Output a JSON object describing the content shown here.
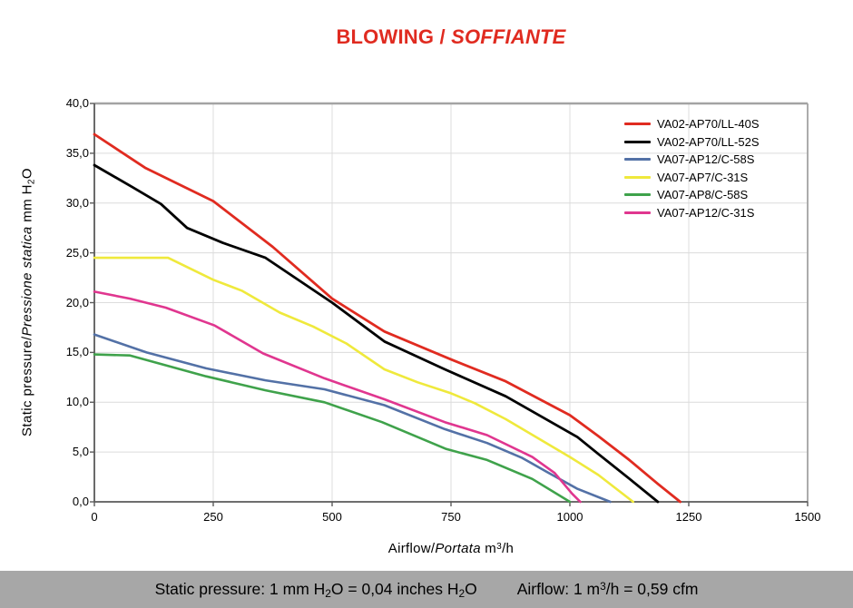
{
  "title": {
    "text": "BLOWING / SOFFIANTE",
    "parts": [
      {
        "t": "BLOWING / "
      },
      {
        "t": "SOFFIANTE",
        "i": 1
      }
    ]
  },
  "theme": {
    "title_color": "#e02b20",
    "footer_bg": "#a7a7a7",
    "grid_color": "#dcdcdc",
    "axis_color_dark": "#5a5a5a",
    "axis_color_light": "#a3a3a3",
    "tick_color": "#5a5a5a"
  },
  "chart_data": {
    "type": "line",
    "title": "BLOWING / SOFFIANTE",
    "xlabel": "Airflow/Portata m³/h",
    "ylabel": "Static pressure/Pressione statica mm H₂O",
    "xlim": [
      0,
      1500
    ],
    "ylim": [
      0,
      40
    ],
    "xticks": [
      0,
      250,
      500,
      750,
      1000,
      1250,
      1500
    ],
    "xtick_labels": [
      "0",
      "250",
      "500",
      "750",
      "1000",
      "1250",
      "1500"
    ],
    "yticks": [
      0,
      5,
      10,
      15,
      20,
      25,
      30,
      35,
      40
    ],
    "ytick_labels": [
      "0,0",
      "5,0",
      "10,0",
      "15,0",
      "20,0",
      "25,0",
      "30,0",
      "35,0",
      "40,0"
    ],
    "grid": true,
    "legend_position": "top-right",
    "series": [
      {
        "name": "VA02-AP70/LL-40S",
        "color": "#e02b20",
        "points": [
          [
            0,
            36.9
          ],
          [
            108,
            33.5
          ],
          [
            250,
            30.2
          ],
          [
            375,
            25.6
          ],
          [
            500,
            20.4
          ],
          [
            610,
            17.1
          ],
          [
            750,
            14.3
          ],
          [
            865,
            12.1
          ],
          [
            1000,
            8.7
          ],
          [
            1060,
            6.6
          ],
          [
            1125,
            4.2
          ],
          [
            1185,
            1.8
          ],
          [
            1232,
            0
          ]
        ]
      },
      {
        "name": "VA02-AP70/LL-52S",
        "color": "#000000",
        "points": [
          [
            0,
            33.8
          ],
          [
            80,
            31.6
          ],
          [
            140,
            29.9
          ],
          [
            195,
            27.5
          ],
          [
            270,
            26.0
          ],
          [
            360,
            24.5
          ],
          [
            500,
            20.0
          ],
          [
            610,
            16.1
          ],
          [
            737,
            13.3
          ],
          [
            865,
            10.6
          ],
          [
            1016,
            6.5
          ],
          [
            1060,
            4.8
          ],
          [
            1123,
            2.4
          ],
          [
            1185,
            0
          ]
        ]
      },
      {
        "name": "VA07-AP12/C-58S",
        "color": "#5371a6",
        "points": [
          [
            0,
            16.8
          ],
          [
            110,
            15.0
          ],
          [
            235,
            13.4
          ],
          [
            360,
            12.2
          ],
          [
            484,
            11.3
          ],
          [
            610,
            9.7
          ],
          [
            737,
            7.3
          ],
          [
            826,
            5.9
          ],
          [
            900,
            4.4
          ],
          [
            952,
            3.0
          ],
          [
            1016,
            1.3
          ],
          [
            1085,
            0
          ]
        ]
      },
      {
        "name": "VA07-AP7/C-31S",
        "color": "#efe93c",
        "points": [
          [
            0,
            24.5
          ],
          [
            155,
            24.5
          ],
          [
            250,
            22.3
          ],
          [
            310,
            21.2
          ],
          [
            390,
            19.0
          ],
          [
            460,
            17.6
          ],
          [
            530,
            15.9
          ],
          [
            610,
            13.3
          ],
          [
            680,
            12.0
          ],
          [
            750,
            10.9
          ],
          [
            800,
            9.9
          ],
          [
            865,
            8.3
          ],
          [
            1000,
            4.5
          ],
          [
            1060,
            2.7
          ],
          [
            1133,
            0
          ]
        ]
      },
      {
        "name": "VA07-AP8/C-58S",
        "color": "#3fa24b",
        "points": [
          [
            0,
            14.8
          ],
          [
            75,
            14.7
          ],
          [
            235,
            12.6
          ],
          [
            360,
            11.2
          ],
          [
            484,
            10.0
          ],
          [
            605,
            8.0
          ],
          [
            740,
            5.3
          ],
          [
            826,
            4.2
          ],
          [
            921,
            2.3
          ],
          [
            1000,
            0
          ]
        ]
      },
      {
        "name": "VA07-AP12/C-31S",
        "color": "#e0368f",
        "points": [
          [
            0,
            21.1
          ],
          [
            75,
            20.4
          ],
          [
            150,
            19.5
          ],
          [
            253,
            17.7
          ],
          [
            355,
            14.9
          ],
          [
            484,
            12.4
          ],
          [
            610,
            10.3
          ],
          [
            737,
            8.0
          ],
          [
            826,
            6.7
          ],
          [
            921,
            4.5
          ],
          [
            968,
            2.9
          ],
          [
            1005,
            0.8
          ],
          [
            1022,
            0
          ]
        ]
      }
    ]
  },
  "axis_display": {
    "ylabel_parts": [
      {
        "t": "Static pressure/"
      },
      {
        "t": "Pressione statica",
        "i": 1
      },
      {
        "t": " mm H"
      },
      {
        "t": "2",
        "sub": 1
      },
      {
        "t": "O"
      }
    ],
    "xlabel_parts": [
      {
        "t": "Airflow/"
      },
      {
        "t": "Portata",
        "i": 1
      },
      {
        "t": " m"
      },
      {
        "t": "3",
        "sup": 1
      },
      {
        "t": "/h"
      }
    ]
  },
  "footer": {
    "pressure_note": "Static pressure: 1 mm H₂O = 0,04 inches H₂O",
    "airflow_note": "Airflow: 1 m³/h = 0,59 cfm",
    "pressure_parts": [
      {
        "t": "Static pressure: 1 mm H"
      },
      {
        "t": "2",
        "sub": 1
      },
      {
        "t": "O = 0,04 inches H"
      },
      {
        "t": "2",
        "sub": 1
      },
      {
        "t": "O"
      }
    ],
    "airflow_parts": [
      {
        "t": "Airflow: 1 m"
      },
      {
        "t": "3",
        "sup": 1
      },
      {
        "t": "/h = 0,59 cfm"
      }
    ]
  }
}
